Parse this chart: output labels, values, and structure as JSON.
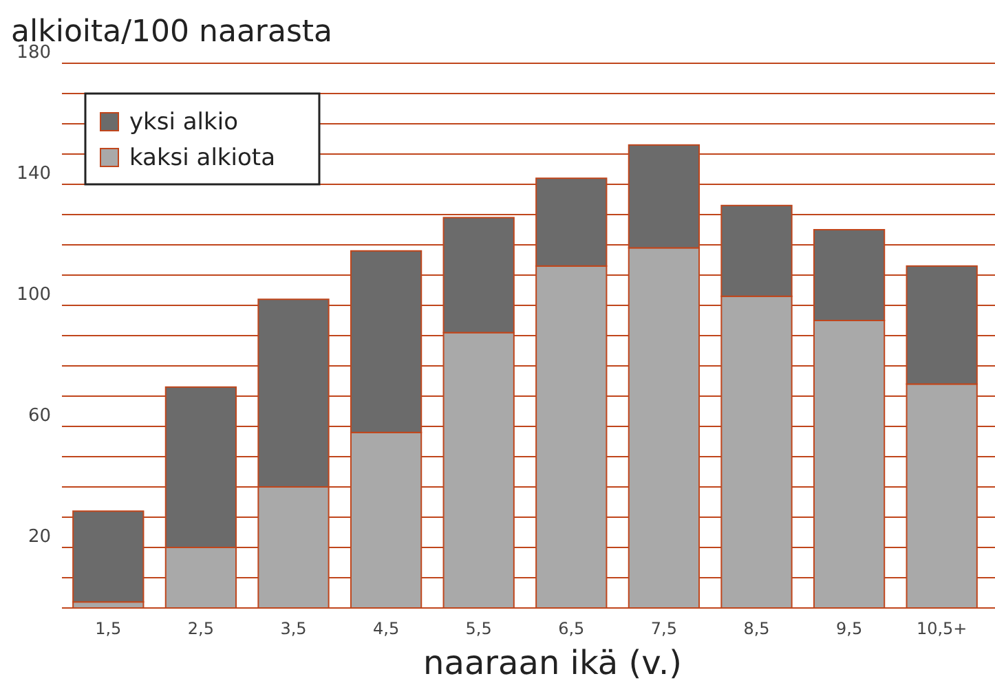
{
  "chart_data": {
    "type": "bar",
    "stacked": true,
    "ylabel": "alkioita/100 naarasta",
    "xlabel": "naaraan ikä (v.)",
    "categories": [
      "1,5",
      "2,5",
      "3,5",
      "4,5",
      "5,5",
      "6,5",
      "7,5",
      "8,5",
      "9,5",
      "10,5+"
    ],
    "series": [
      {
        "name": "kaksi alkiota",
        "color": "#a9a9a9",
        "values": [
          2,
          20,
          40,
          58,
          91,
          113,
          119,
          103,
          95,
          74
        ]
      },
      {
        "name": "yksi alkio",
        "color": "#6b6b6b",
        "values": [
          30,
          53,
          62,
          60,
          38,
          29,
          34,
          30,
          30,
          39
        ]
      }
    ],
    "ylim": [
      0,
      180
    ],
    "yticks": [
      {
        "value": 10,
        "label": null
      },
      20,
      {
        "value": 30,
        "label": null
      },
      {
        "value": 40,
        "label": null
      },
      {
        "value": 50,
        "label": null
      },
      60,
      {
        "value": 70,
        "label": null
      },
      {
        "value": 80,
        "label": null
      },
      {
        "value": 90,
        "label": null
      },
      100,
      {
        "value": 110,
        "label": null
      },
      {
        "value": 120,
        "label": null
      },
      {
        "value": 130,
        "label": null
      },
      140,
      {
        "value": 150,
        "label": null
      },
      {
        "value": 160,
        "label": null
      },
      {
        "value": 170,
        "label": null
      },
      180
    ],
    "grid": "y",
    "legend": "top left"
  }
}
